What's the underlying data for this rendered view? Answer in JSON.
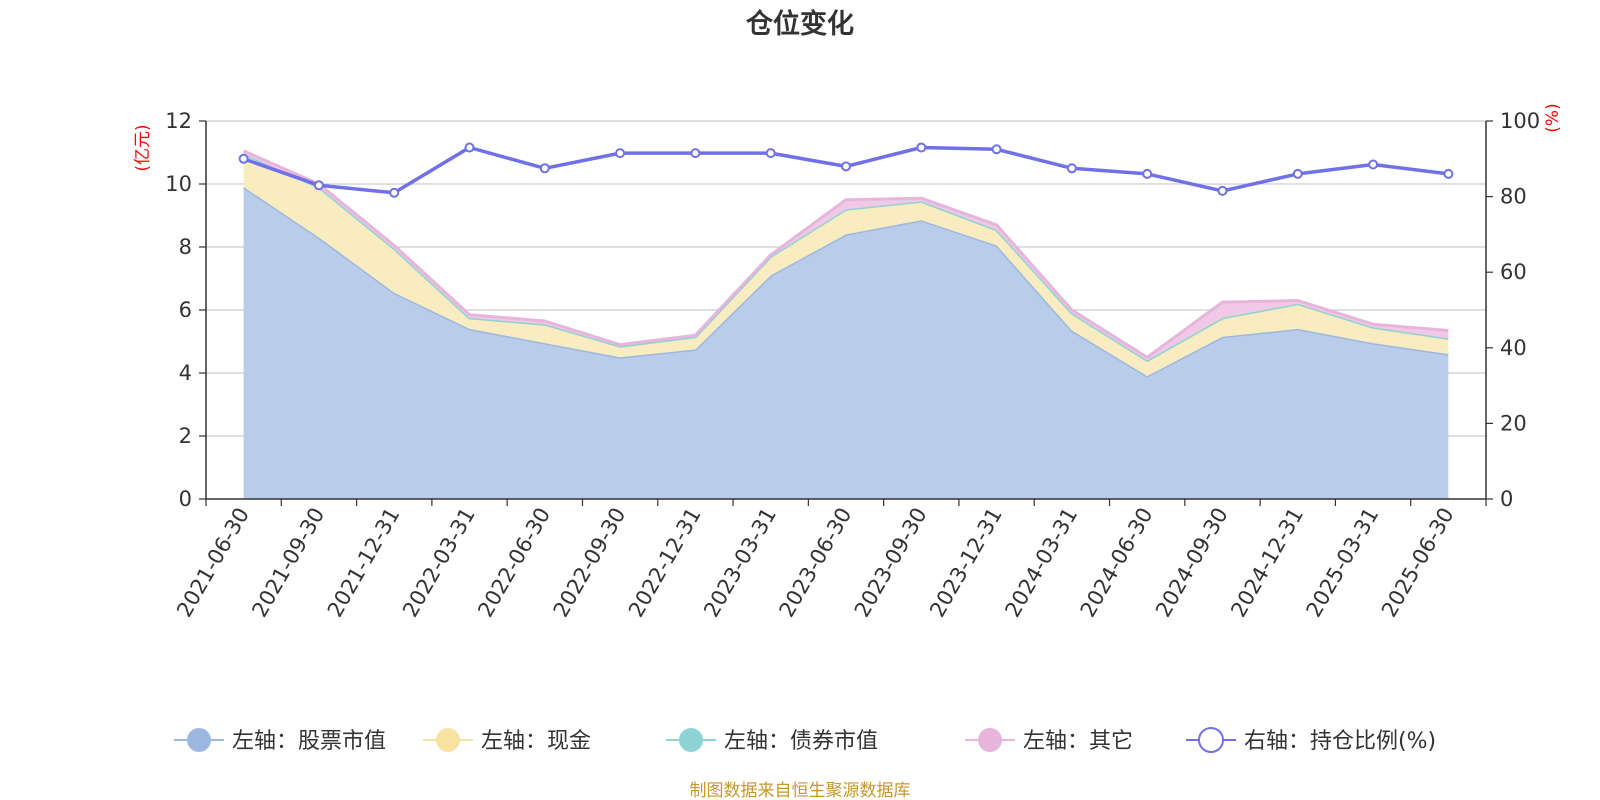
{
  "chart_data": {
    "type": "area",
    "title": "仓位变化",
    "left_axis": {
      "unit": "(亿元)",
      "ylim": [
        0,
        12
      ],
      "ticks": [
        "0",
        "2",
        "4",
        "6",
        "8",
        "10",
        "12"
      ]
    },
    "right_axis": {
      "unit": "(%)",
      "ylim": [
        0,
        100
      ],
      "ticks": [
        "0",
        "20",
        "40",
        "60",
        "80",
        "100"
      ]
    },
    "categories": [
      "2021-06-30",
      "2021-09-30",
      "2021-12-31",
      "2022-03-31",
      "2022-06-30",
      "2022-09-30",
      "2022-12-31",
      "2023-03-31",
      "2023-06-30",
      "2023-09-30",
      "2023-12-31",
      "2024-03-31",
      "2024-06-30",
      "2024-09-30",
      "2024-12-31",
      "2025-03-31",
      "2025-06-30"
    ],
    "stacked": true,
    "series": [
      {
        "name": "左轴：股票市值",
        "axis": "left",
        "type": "area",
        "color": "#9bb8e0",
        "fill": "#b9cdea",
        "values": [
          9.9,
          8.3,
          6.55,
          5.4,
          4.95,
          4.5,
          4.75,
          7.1,
          8.4,
          8.85,
          8.05,
          5.35,
          3.9,
          5.15,
          5.4,
          4.95,
          4.6
        ]
      },
      {
        "name": "左轴：现金",
        "axis": "left",
        "type": "area",
        "color": "#f7e3a1",
        "fill": "#f9ecc0",
        "values": [
          1.05,
          1.6,
          1.4,
          0.35,
          0.6,
          0.35,
          0.4,
          0.6,
          0.8,
          0.6,
          0.5,
          0.55,
          0.5,
          0.6,
          0.8,
          0.5,
          0.5
        ]
      },
      {
        "name": "左轴：债券市值",
        "axis": "left",
        "type": "area",
        "color": "#8ed3d3",
        "fill": "#b7e3e3",
        "values": [
          0,
          0,
          0,
          0,
          0,
          0,
          0,
          0,
          0,
          0,
          0,
          0,
          0,
          0,
          0,
          0,
          0
        ]
      },
      {
        "name": "左轴：其它",
        "axis": "left",
        "type": "area",
        "color": "#e7b5dc",
        "fill": "#efc9e6",
        "values": [
          0.1,
          0.1,
          0.1,
          0.1,
          0.1,
          0.05,
          0.05,
          0.05,
          0.3,
          0.1,
          0.15,
          0.1,
          0.1,
          0.5,
          0.1,
          0.1,
          0.25
        ]
      },
      {
        "name": "右轴：持仓比例(%)",
        "axis": "right",
        "type": "line",
        "color": "#7070e8",
        "values": [
          90,
          83,
          81,
          93,
          87.5,
          91.5,
          91.5,
          91.5,
          88,
          93,
          92.5,
          87.5,
          86,
          81.5,
          86,
          88.5,
          86
        ]
      }
    ],
    "legend_position": "bottom",
    "grid": true
  },
  "footer": {
    "source": "制图数据来自恒生聚源数据库"
  }
}
